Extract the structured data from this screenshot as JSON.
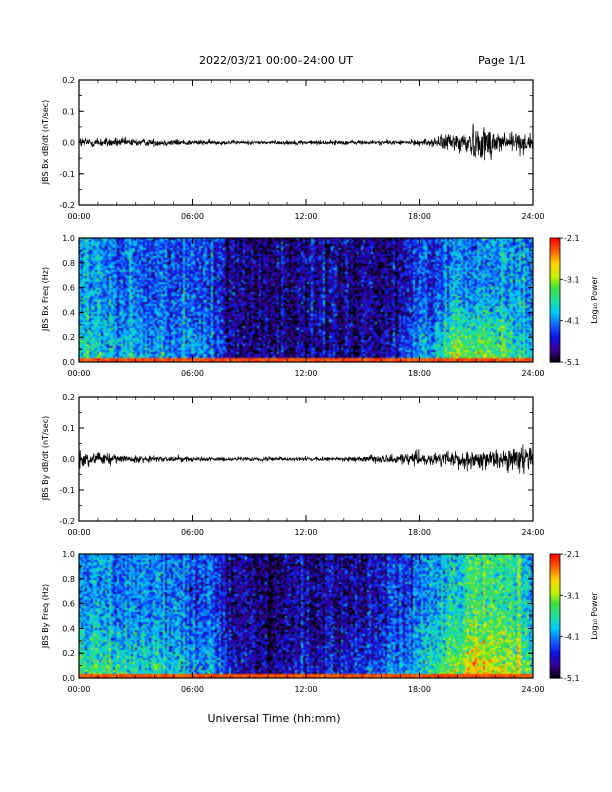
{
  "header": {
    "title": "2022/03/21  00:00–24:00 UT",
    "page": "Page 1/1"
  },
  "footer": {
    "xlabel": "Universal Time (hh:mm)"
  },
  "colorbar": {
    "ticks": [
      "-2.1",
      "-3.1",
      "-4.1",
      "-5.1"
    ],
    "tick_values": [
      -2.1,
      -3.1,
      -4.1,
      -5.1
    ],
    "range": [
      -5.1,
      -2.1
    ],
    "label": "Log₁₀ Power",
    "colormap": [
      "#000000",
      "#3a0090",
      "#1010e0",
      "#1060ff",
      "#00c8ff",
      "#20e0a0",
      "#40e040",
      "#c8f000",
      "#ffd000",
      "#ff6000",
      "#ff0000"
    ]
  },
  "chart_data": [
    {
      "type": "line",
      "ylabel": "JBS Bx dB/dt (nT/sec)",
      "ylim": [
        -0.2,
        0.2
      ],
      "yticks": [
        "0.2",
        "0.1",
        "0.0",
        "-0.1",
        "-0.2"
      ],
      "ytick_values": [
        0.2,
        0.1,
        0.0,
        -0.1,
        -0.2
      ],
      "xlim": [
        0,
        24
      ],
      "xticks": [
        "00:00",
        "06:00",
        "12:00",
        "18:00",
        "24:00"
      ],
      "xtick_values": [
        0,
        6,
        12,
        18,
        24
      ],
      "color": "#000000",
      "series": [
        {
          "x": [
            0,
            1,
            2,
            3,
            4,
            5,
            6,
            7,
            8,
            9,
            10,
            11,
            12,
            13,
            14,
            15,
            16,
            17,
            18,
            19,
            20,
            21,
            22,
            23,
            24
          ],
          "amplitude": [
            0.02,
            0.018,
            0.016,
            0.014,
            0.012,
            0.012,
            0.01,
            0.008,
            0.007,
            0.007,
            0.007,
            0.008,
            0.008,
            0.008,
            0.008,
            0.008,
            0.008,
            0.008,
            0.01,
            0.02,
            0.045,
            0.06,
            0.055,
            0.04,
            0.03
          ]
        }
      ]
    },
    {
      "type": "heatmap",
      "ylabel": "JBS Bx Freq (Hz)",
      "ylim": [
        0.0,
        1.0
      ],
      "yticks": [
        "1.0",
        "0.8",
        "0.6",
        "0.4",
        "0.2",
        "0.0"
      ],
      "ytick_values": [
        1.0,
        0.8,
        0.6,
        0.4,
        0.2,
        0.0
      ],
      "xlim": [
        0,
        24
      ],
      "xticks": [
        "00:00",
        "06:00",
        "12:00",
        "18:00",
        "24:00"
      ],
      "xtick_values": [
        0,
        6,
        12,
        18,
        24
      ],
      "hours": [
        0,
        1,
        2,
        3,
        4,
        5,
        6,
        7,
        8,
        9,
        10,
        11,
        12,
        13,
        14,
        15,
        16,
        17,
        18,
        19,
        20,
        21,
        22,
        23,
        24
      ],
      "low_freq_power": [
        -3.6,
        -3.7,
        -3.8,
        -3.8,
        -3.9,
        -4.0,
        -4.0,
        -4.1,
        -4.7,
        -4.8,
        -4.8,
        -4.8,
        -4.8,
        -4.8,
        -4.8,
        -4.8,
        -4.7,
        -4.4,
        -4.0,
        -3.5,
        -3.0,
        -2.9,
        -3.0,
        -3.5,
        -3.8
      ],
      "high_freq_power": [
        -4.0,
        -4.1,
        -4.2,
        -4.2,
        -4.3,
        -4.3,
        -4.3,
        -4.4,
        -4.7,
        -4.8,
        -4.8,
        -4.8,
        -4.8,
        -4.8,
        -4.8,
        -4.8,
        -4.8,
        -4.7,
        -4.4,
        -4.3,
        -4.1,
        -4.0,
        -4.0,
        -4.0,
        -4.1
      ]
    },
    {
      "type": "line",
      "ylabel": "JBS By dB/dt (nT/sec)",
      "ylim": [
        -0.2,
        0.2
      ],
      "yticks": [
        "0.2",
        "0.1",
        "0.0",
        "-0.1",
        "-0.2"
      ],
      "ytick_values": [
        0.2,
        0.1,
        0.0,
        -0.1,
        -0.2
      ],
      "xlim": [
        0,
        24
      ],
      "xticks": [
        "00:00",
        "06:00",
        "12:00",
        "18:00",
        "24:00"
      ],
      "xtick_values": [
        0,
        6,
        12,
        18,
        24
      ],
      "color": "#000000",
      "series": [
        {
          "x": [
            0,
            1,
            2,
            3,
            4,
            5,
            6,
            7,
            8,
            9,
            10,
            11,
            12,
            13,
            14,
            15,
            16,
            17,
            18,
            19,
            20,
            21,
            22,
            23,
            24
          ],
          "amplitude": [
            0.035,
            0.02,
            0.015,
            0.013,
            0.012,
            0.012,
            0.01,
            0.008,
            0.007,
            0.007,
            0.007,
            0.007,
            0.007,
            0.007,
            0.008,
            0.01,
            0.015,
            0.02,
            0.025,
            0.025,
            0.03,
            0.035,
            0.035,
            0.045,
            0.04
          ]
        }
      ]
    },
    {
      "type": "heatmap",
      "ylabel": "JBS By Freq (Hz)",
      "ylim": [
        0.0,
        1.0
      ],
      "yticks": [
        "1.0",
        "0.8",
        "0.6",
        "0.4",
        "0.2",
        "0.0"
      ],
      "ytick_values": [
        1.0,
        0.8,
        0.6,
        0.4,
        0.2,
        0.0
      ],
      "xlim": [
        0,
        24
      ],
      "xticks": [
        "00:00",
        "06:00",
        "12:00",
        "18:00",
        "24:00"
      ],
      "xtick_values": [
        0,
        6,
        12,
        18,
        24
      ],
      "hours": [
        0,
        1,
        2,
        3,
        4,
        5,
        6,
        7,
        8,
        9,
        10,
        11,
        12,
        13,
        14,
        15,
        16,
        17,
        18,
        19,
        20,
        21,
        22,
        23,
        24
      ],
      "low_freq_power": [
        -3.2,
        -3.3,
        -3.4,
        -3.6,
        -3.7,
        -3.8,
        -3.8,
        -3.9,
        -4.4,
        -4.6,
        -4.7,
        -4.7,
        -4.6,
        -4.5,
        -4.4,
        -4.3,
        -4.1,
        -4.0,
        -3.7,
        -3.4,
        -3.0,
        -2.7,
        -2.8,
        -3.0,
        -3.4
      ],
      "high_freq_power": [
        -4.0,
        -4.0,
        -4.1,
        -4.1,
        -4.2,
        -4.2,
        -4.2,
        -4.3,
        -4.7,
        -4.8,
        -4.8,
        -4.8,
        -4.8,
        -4.8,
        -4.8,
        -4.7,
        -4.6,
        -4.4,
        -4.2,
        -4.0,
        -3.7,
        -3.5,
        -3.5,
        -3.7,
        -4.0
      ]
    }
  ]
}
